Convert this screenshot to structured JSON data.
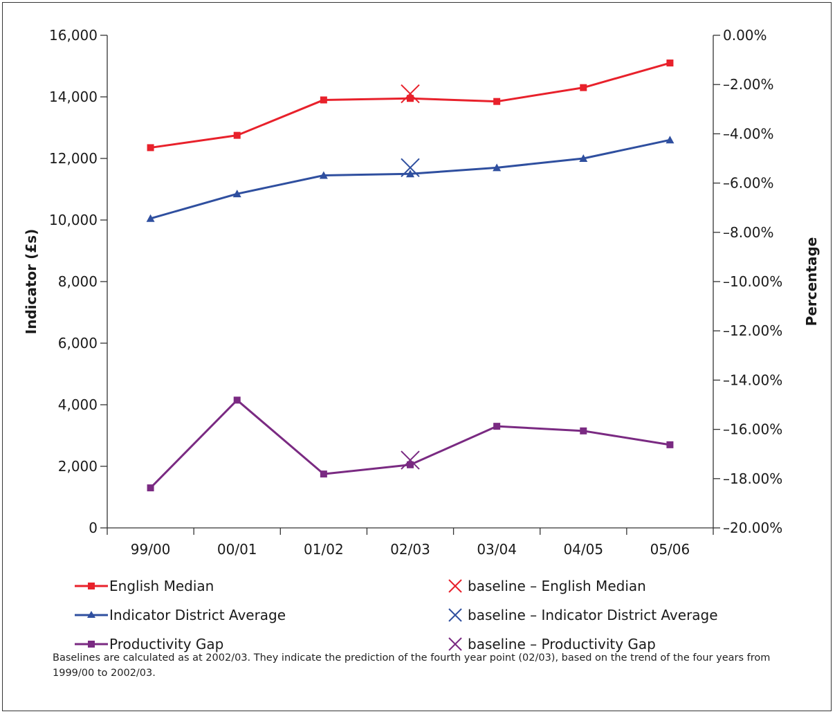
{
  "chart_data": {
    "type": "line",
    "title": "",
    "categories": [
      "99/00",
      "00/01",
      "01/02",
      "02/03",
      "03/04",
      "04/05",
      "05/06"
    ],
    "ylabel_left": "Indicator (£s)",
    "ylabel_right": "Percentage",
    "ylim_left": [
      0,
      16000
    ],
    "ylim_right": [
      -20,
      0
    ],
    "yticks_left": [
      "0",
      "2,000",
      "4,000",
      "6,000",
      "8,000",
      "10,000",
      "12,000",
      "14,000",
      "16,000"
    ],
    "yticks_right": [
      "–20.00%",
      "–18.00%",
      "–16.00%",
      "–14.00%",
      "–12.00%",
      "–10.00%",
      "–8.00%",
      "–6.00%",
      "–4.00%",
      "–2.00%",
      "0.00%"
    ],
    "grid": false,
    "legend_position": "bottom",
    "series": [
      {
        "name": "English Median",
        "axis": "left",
        "marker": "square",
        "color": "#e8212b",
        "values": [
          12350,
          12750,
          13900,
          13950,
          13850,
          14300,
          15100
        ]
      },
      {
        "name": "Indicator District Average",
        "axis": "left",
        "marker": "triangle",
        "color": "#2f4f9f",
        "values": [
          10050,
          10850,
          11450,
          11500,
          11700,
          12000,
          12600
        ]
      },
      {
        "name": "Productivity Gap",
        "axis": "left",
        "marker": "square",
        "color": "#7a2a82",
        "values": [
          1300,
          4150,
          1750,
          2050,
          3300,
          3150,
          2700
        ]
      }
    ],
    "baselines": [
      {
        "name": "baseline – English Median",
        "category": "02/03",
        "value": 14100,
        "color": "#e8212b"
      },
      {
        "name": "baseline – Indicator District Average",
        "category": "02/03",
        "value": 11700,
        "color": "#2f4f9f"
      },
      {
        "name": "baseline – Productivity Gap",
        "category": "02/03",
        "value": 2200,
        "color": "#7a2a82"
      }
    ],
    "note": "Baselines are calculated as at 2002/03. They indicate the prediction of the fourth year point (02/03), based on the trend of the four years from 1999/00 to 2002/03."
  }
}
